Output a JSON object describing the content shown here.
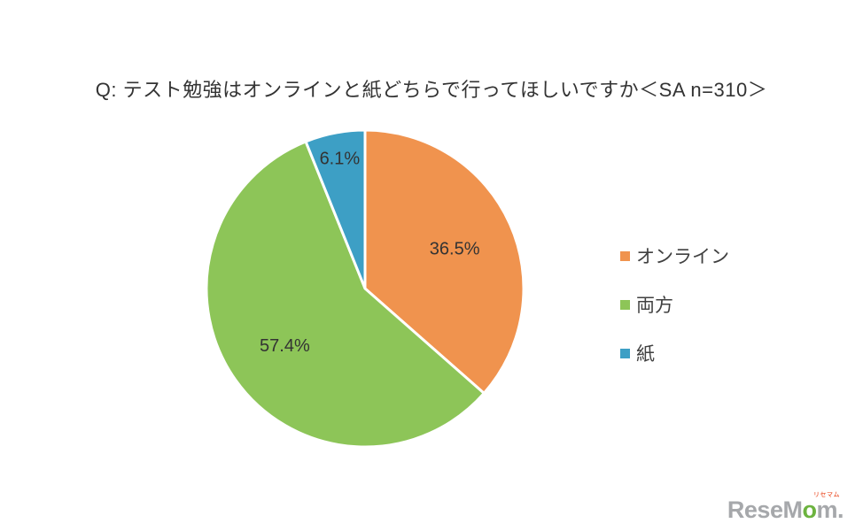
{
  "chart_data": {
    "type": "pie",
    "title": "Q: テスト勉強はオンラインと紙どちらで行ってほしいですか＜SA n=310＞",
    "sample_size": 310,
    "slices": [
      {
        "label": "オンライン",
        "value": 36.5,
        "label_text": "36.5%",
        "color": "#F0934E"
      },
      {
        "label": "両方",
        "value": 57.4,
        "label_text": "57.4%",
        "color": "#8DC558"
      },
      {
        "label": "紙",
        "value": 6.1,
        "label_text": "6.1%",
        "color": "#3D9FC5"
      }
    ],
    "start_angle_deg": 0,
    "direction": "clockwise",
    "legend_position": "right",
    "data_labels_shown": true
  },
  "logo": {
    "part1": "ReseM",
    "part2": "o",
    "part3": "m",
    "dot": ".",
    "ruby": "リセマム"
  }
}
